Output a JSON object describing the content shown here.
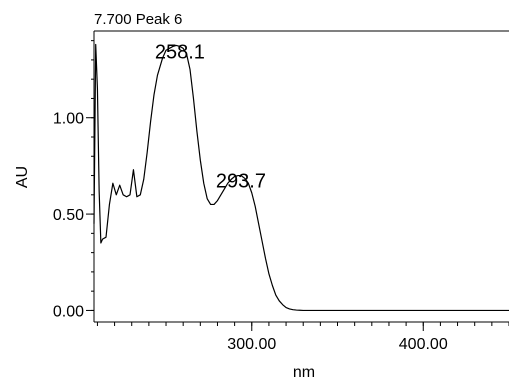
{
  "chart_data": {
    "type": "line",
    "title": "7.700 Peak 6",
    "xlabel": "nm",
    "ylabel": "AU",
    "xlim": [
      208,
      450
    ],
    "ylim": [
      -0.06,
      1.45
    ],
    "x_ticks": [
      300,
      400
    ],
    "x_tick_labels": [
      "300.00",
      "400.00"
    ],
    "x_minor_step": 10,
    "y_ticks": [
      0,
      0.5,
      1.0
    ],
    "y_tick_labels": [
      "0.00",
      "0.50",
      "1.00"
    ],
    "y_minor_step": 0.1,
    "grid": false,
    "annotations": [
      {
        "text": "258.1",
        "x": 258.1,
        "y": 1.37
      },
      {
        "text": "293.7",
        "x": 293.7,
        "y": 0.7
      }
    ],
    "series": [
      {
        "x": [
          208,
          209,
          210,
          211,
          212,
          213,
          215,
          217,
          219,
          221,
          223,
          225,
          227,
          229,
          231,
          233,
          235,
          237,
          239,
          241,
          243,
          245,
          248,
          250,
          252,
          254,
          256,
          258.1,
          260,
          262,
          264,
          266,
          268,
          270,
          272,
          274,
          276,
          278,
          280,
          282,
          284,
          286,
          288,
          290,
          292,
          293.7,
          296,
          298,
          300,
          302,
          304,
          306,
          308,
          310,
          312,
          314,
          316,
          318,
          320,
          322,
          324,
          326,
          328,
          330,
          335,
          340,
          350,
          360,
          380,
          400,
          420,
          450
        ],
        "y": [
          0.45,
          1.38,
          1.15,
          0.62,
          0.35,
          0.37,
          0.38,
          0.55,
          0.66,
          0.6,
          0.65,
          0.6,
          0.59,
          0.6,
          0.73,
          0.59,
          0.6,
          0.68,
          0.82,
          0.98,
          1.12,
          1.22,
          1.31,
          1.35,
          1.36,
          1.37,
          1.375,
          1.37,
          1.36,
          1.33,
          1.25,
          1.1,
          0.93,
          0.78,
          0.66,
          0.58,
          0.55,
          0.55,
          0.57,
          0.6,
          0.63,
          0.66,
          0.68,
          0.695,
          0.7,
          0.7,
          0.685,
          0.66,
          0.61,
          0.54,
          0.45,
          0.36,
          0.27,
          0.19,
          0.13,
          0.08,
          0.05,
          0.03,
          0.015,
          0.008,
          0.004,
          0.002,
          0.001,
          0.0,
          0.0,
          0.0,
          0.0,
          0.0,
          0.0,
          0.0,
          0.0,
          0.0
        ]
      }
    ]
  }
}
